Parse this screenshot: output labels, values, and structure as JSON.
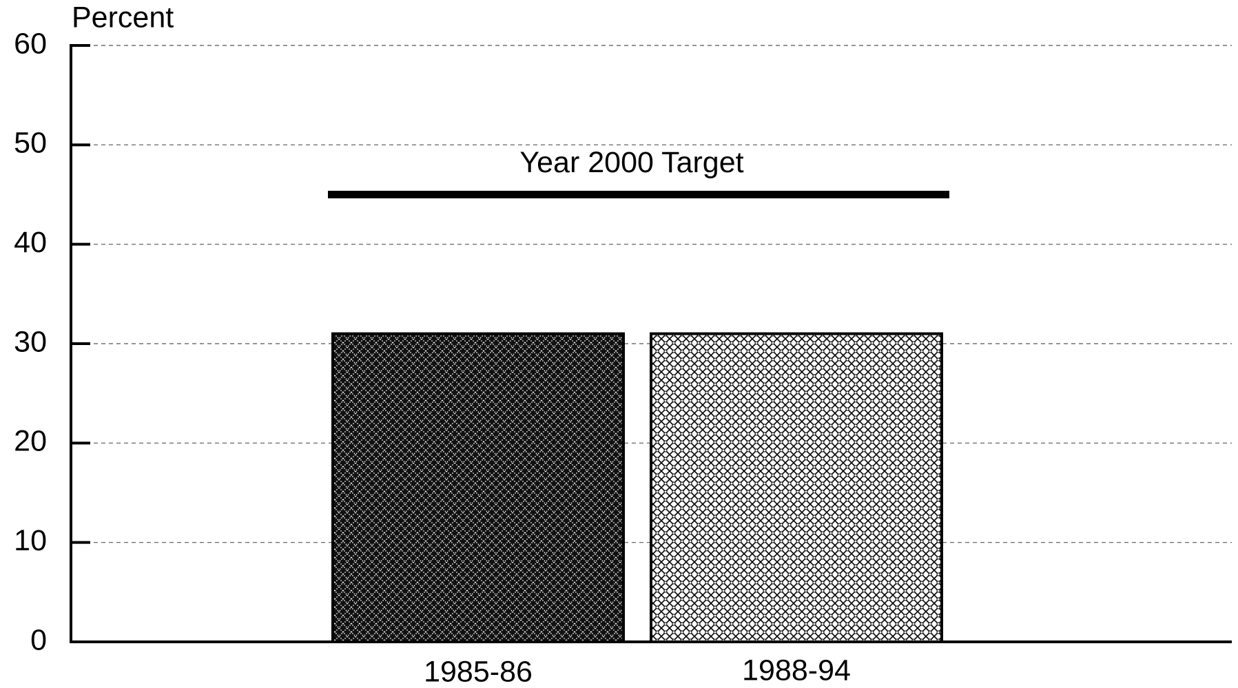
{
  "chart_data": {
    "type": "bar",
    "y_label": "Percent",
    "categories": [
      "1985-86",
      "1988-94"
    ],
    "values": [
      31,
      31
    ],
    "ylim": [
      0,
      60
    ],
    "yticks": [
      0,
      10,
      20,
      30,
      40,
      50,
      60
    ],
    "grid": true,
    "target": {
      "label": "Year 2000 Target",
      "value": 45
    }
  }
}
